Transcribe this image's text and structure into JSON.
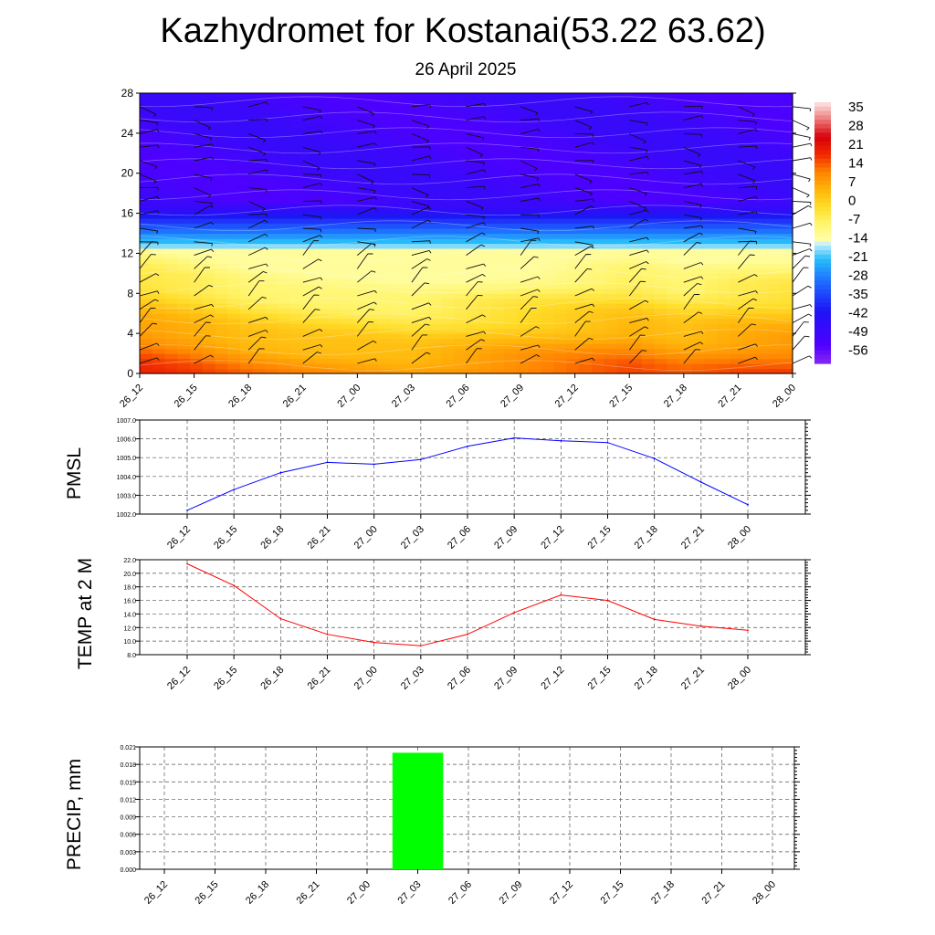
{
  "title": "Kazhydromet for Kostanai(53.22 63.62)",
  "subtitle": "26 April 2025",
  "chart_data": [
    {
      "type": "heatmap",
      "x": [
        "26_12",
        "26_15",
        "26_18",
        "26_21",
        "27_00",
        "27_03",
        "27_06",
        "27_09",
        "27_12",
        "27_15",
        "27_18",
        "27_21",
        "28_00"
      ],
      "ylim": [
        0,
        28
      ],
      "yticks": [
        0,
        4,
        8,
        12,
        16,
        20,
        24,
        28
      ],
      "colorbar": {
        "tick_labels": [
          "35",
          "28",
          "21",
          "14",
          "7",
          "0",
          "-7",
          "-14",
          "-21",
          "-28",
          "-35",
          "-42",
          "-49",
          "-56"
        ],
        "range": [
          -63,
          42
        ]
      },
      "surface_temperature": [
        22,
        19,
        15,
        13,
        12,
        11,
        13,
        15,
        17,
        19,
        16,
        18,
        19
      ],
      "lapse_rate_per_unit": 2.6,
      "barbs": "wind barbs at each time and level"
    },
    {
      "type": "line",
      "ylabel": "PMSL",
      "x": [
        "26_12",
        "26_15",
        "26_18",
        "26_21",
        "27_00",
        "27_03",
        "27_06",
        "27_09",
        "27_12",
        "27_15",
        "27_18",
        "27_21",
        "28_00"
      ],
      "values": [
        1002.2,
        1003.3,
        1004.2,
        1004.75,
        1004.65,
        1004.9,
        1005.6,
        1006.05,
        1005.9,
        1005.8,
        1004.95,
        1003.7,
        1002.5
      ],
      "ylim": [
        1002.0,
        1007.0
      ],
      "yticks": [
        "1002.0",
        "1003.0",
        "1004.0",
        "1005.0",
        "1006.0",
        "1007.0"
      ],
      "line_color": "#0000ff",
      "grid": true
    },
    {
      "type": "line",
      "ylabel": "TEMP at 2 M",
      "x": [
        "26_12",
        "26_15",
        "26_18",
        "26_21",
        "27_00",
        "27_03",
        "27_06",
        "27_09",
        "27_12",
        "27_15",
        "27_18",
        "27_21",
        "28_00"
      ],
      "values": [
        21.4,
        18.2,
        13.3,
        11.0,
        9.8,
        9.3,
        11.0,
        14.2,
        16.8,
        16.0,
        13.2,
        12.2,
        11.6
      ],
      "ylim": [
        8.0,
        22.0
      ],
      "yticks": [
        "8.0",
        "10.0",
        "12.0",
        "14.0",
        "16.0",
        "18.0",
        "20.0",
        "22.0"
      ],
      "line_color": "#ff0000",
      "grid": true
    },
    {
      "type": "bar",
      "ylabel": "PRECIP, mm",
      "x": [
        "26_12",
        "26_15",
        "26_18",
        "26_21",
        "27_00",
        "27_03",
        "27_06",
        "27_09",
        "27_12",
        "27_15",
        "27_18",
        "27_21",
        "28_00"
      ],
      "values": [
        0,
        0,
        0,
        0,
        0,
        0.02,
        0,
        0,
        0,
        0,
        0,
        0,
        0
      ],
      "ylim": [
        0,
        0.021
      ],
      "yticks": [
        "0.000",
        "0.003",
        "0.006",
        "0.009",
        "0.012",
        "0.015",
        "0.018",
        "0.021"
      ],
      "bar_color": "#00ff00",
      "grid": true
    }
  ]
}
